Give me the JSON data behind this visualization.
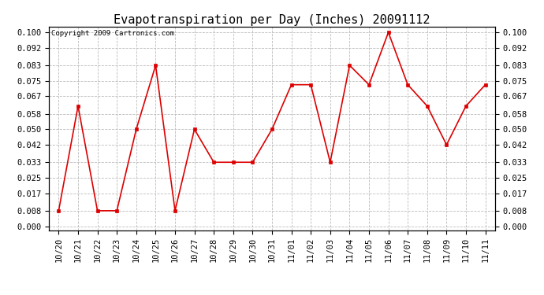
{
  "title": "Evapotranspiration per Day (Inches) 20091112",
  "copyright_text": "Copyright 2009 Cartronics.com",
  "x_labels": [
    "10/20",
    "10/21",
    "10/22",
    "10/23",
    "10/24",
    "10/25",
    "10/26",
    "10/27",
    "10/28",
    "10/29",
    "10/30",
    "10/31",
    "11/01",
    "11/02",
    "11/03",
    "11/04",
    "11/05",
    "11/06",
    "11/07",
    "11/08",
    "11/09",
    "11/10",
    "11/11"
  ],
  "y_values": [
    0.008,
    0.062,
    0.008,
    0.008,
    0.05,
    0.083,
    0.008,
    0.05,
    0.033,
    0.033,
    0.033,
    0.05,
    0.073,
    0.073,
    0.033,
    0.083,
    0.073,
    0.1,
    0.073,
    0.062,
    0.042,
    0.062,
    0.073
  ],
  "line_color": "#dd0000",
  "marker": "s",
  "marker_size": 3,
  "y_ticks": [
    0.0,
    0.008,
    0.017,
    0.025,
    0.033,
    0.042,
    0.05,
    0.058,
    0.067,
    0.075,
    0.083,
    0.092,
    0.1
  ],
  "ylim": [
    -0.002,
    0.105
  ],
  "bg_color": "#ffffff",
  "plot_bg_color": "#ffffff",
  "grid_color": "#bbbbbb",
  "title_fontsize": 11,
  "copyright_fontsize": 6.5,
  "tick_fontsize": 7.5
}
